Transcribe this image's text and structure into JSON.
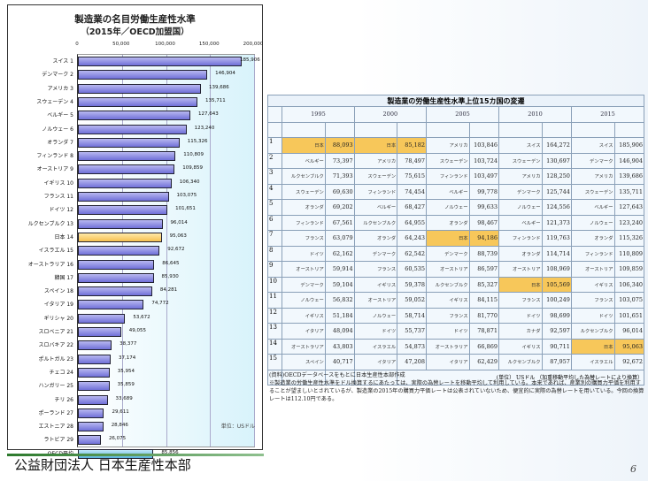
{
  "chart_data": {
    "type": "bar",
    "orientation": "horizontal",
    "title": "製造業の名目労働生産性水準",
    "subtitle": "（2015年／OECD加盟国）",
    "unit_label": "単位：USドル",
    "xlim": [
      0,
      200000
    ],
    "ticks": [
      "0",
      "50,000",
      "100,000",
      "150,000",
      "200,000"
    ],
    "tick_values": [
      0,
      50000,
      100000,
      150000,
      200000
    ],
    "highlight": "日本 14",
    "categories": [
      "スイス 1",
      "デンマーク 2",
      "アメリカ 3",
      "スウェーデン 4",
      "ベルギー 5",
      "ノルウェー 6",
      "オランダ 7",
      "フィンランド 8",
      "オーストリア 9",
      "イギリス 10",
      "フランス 11",
      "ドイツ 12",
      "ルクセンブルク 13",
      "日本 14",
      "イスラエル 15",
      "オーストラリア 16",
      "韓国 17",
      "スペイン 18",
      "イタリア 19",
      "ギリシャ 20",
      "スロベニア 21",
      "スロバキア 22",
      "ポルトガル 23",
      "チェコ 24",
      "ハンガリー 25",
      "チリ 26",
      "ポーランド 27",
      "エストニア 28",
      "ラトビア 29",
      "OECD平均"
    ],
    "values": [
      185906,
      146904,
      139686,
      135711,
      127643,
      123240,
      115326,
      110809,
      109859,
      106340,
      103075,
      101651,
      96014,
      95063,
      92672,
      86645,
      85930,
      84281,
      74772,
      53672,
      49055,
      38377,
      37174,
      35954,
      35859,
      33689,
      29611,
      28846,
      26075,
      85856
    ],
    "value_labels": [
      "185,906",
      "146,904",
      "139,686",
      "135,711",
      "127,643",
      "123,240",
      "115,326",
      "110,809",
      "109,859",
      "106,340",
      "103,075",
      "101,651",
      "96,014",
      "95,063",
      "92,672",
      "86,645",
      "85,930",
      "84,281",
      "74,772",
      "53,672",
      "49,055",
      "38,377",
      "37,174",
      "35,954",
      "35,859",
      "33,689",
      "29,611",
      "28,846",
      "26,075",
      "85,856"
    ]
  },
  "table": {
    "title": "製造業の労働生産性水準上位15カ国の変遷",
    "years": [
      "1995",
      "2000",
      "2005",
      "2010",
      "2015"
    ],
    "rows": [
      {
        "rank": "1",
        "cells": [
          [
            "日本",
            "88,093",
            1
          ],
          [
            "日本",
            "85,182",
            1
          ],
          [
            "アメリカ",
            "103,846",
            0
          ],
          [
            "スイス",
            "164,272",
            0
          ],
          [
            "スイス",
            "185,906",
            0
          ]
        ]
      },
      {
        "rank": "2",
        "cells": [
          [
            "ベルギー",
            "73,397",
            0
          ],
          [
            "アメリカ",
            "78,497",
            0
          ],
          [
            "スウェーデン",
            "103,724",
            0
          ],
          [
            "スウェーデン",
            "130,697",
            0
          ],
          [
            "デンマーク",
            "146,904",
            0
          ]
        ]
      },
      {
        "rank": "3",
        "cells": [
          [
            "ルクセンブルク",
            "71,393",
            0
          ],
          [
            "スウェーデン",
            "75,615",
            0
          ],
          [
            "フィンランド",
            "103,497",
            0
          ],
          [
            "アメリカ",
            "128,250",
            0
          ],
          [
            "アメリカ",
            "139,686",
            0
          ]
        ]
      },
      {
        "rank": "4",
        "cells": [
          [
            "スウェーデン",
            "69,630",
            0
          ],
          [
            "フィンランド",
            "74,454",
            0
          ],
          [
            "ベルギー",
            "99,778",
            0
          ],
          [
            "デンマーク",
            "125,744",
            0
          ],
          [
            "スウェーデン",
            "135,711",
            0
          ]
        ]
      },
      {
        "rank": "5",
        "cells": [
          [
            "オランダ",
            "69,202",
            0
          ],
          [
            "ベルギー",
            "68,427",
            0
          ],
          [
            "ノルウェー",
            "99,633",
            0
          ],
          [
            "ノルウェー",
            "124,556",
            0
          ],
          [
            "ベルギー",
            "127,643",
            0
          ]
        ]
      },
      {
        "rank": "6",
        "cells": [
          [
            "フィンランド",
            "67,561",
            0
          ],
          [
            "ルクセンブルク",
            "64,955",
            0
          ],
          [
            "オランダ",
            "98,467",
            0
          ],
          [
            "ベルギー",
            "121,373",
            0
          ],
          [
            "ノルウェー",
            "123,240",
            0
          ]
        ]
      },
      {
        "rank": "7",
        "cells": [
          [
            "フランス",
            "63,079",
            0
          ],
          [
            "オランダ",
            "64,243",
            0
          ],
          [
            "日本",
            "94,186",
            1
          ],
          [
            "フィンランド",
            "119,763",
            0
          ],
          [
            "オランダ",
            "115,326",
            0
          ]
        ]
      },
      {
        "rank": "8",
        "cells": [
          [
            "ドイツ",
            "62,162",
            0
          ],
          [
            "デンマーク",
            "62,542",
            0
          ],
          [
            "デンマーク",
            "88,739",
            0
          ],
          [
            "オランダ",
            "114,714",
            0
          ],
          [
            "フィンランド",
            "110,809",
            0
          ]
        ]
      },
      {
        "rank": "9",
        "cells": [
          [
            "オーストリア",
            "59,914",
            0
          ],
          [
            "フランス",
            "60,535",
            0
          ],
          [
            "オーストリア",
            "86,597",
            0
          ],
          [
            "オーストリア",
            "108,969",
            0
          ],
          [
            "オーストリア",
            "109,859",
            0
          ]
        ]
      },
      {
        "rank": "10",
        "cells": [
          [
            "デンマーク",
            "59,104",
            0
          ],
          [
            "イギリス",
            "59,378",
            0
          ],
          [
            "ルクセンブルク",
            "85,327",
            0
          ],
          [
            "日本",
            "105,569",
            1
          ],
          [
            "イギリス",
            "106,340",
            0
          ]
        ]
      },
      {
        "rank": "11",
        "cells": [
          [
            "ノルウェー",
            "56,832",
            0
          ],
          [
            "オーストリア",
            "59,052",
            0
          ],
          [
            "イギリス",
            "84,115",
            0
          ],
          [
            "フランス",
            "100,249",
            0
          ],
          [
            "フランス",
            "103,075",
            0
          ]
        ]
      },
      {
        "rank": "12",
        "cells": [
          [
            "イギリス",
            "51,184",
            0
          ],
          [
            "ノルウェー",
            "58,714",
            0
          ],
          [
            "フランス",
            "81,770",
            0
          ],
          [
            "ドイツ",
            "98,699",
            0
          ],
          [
            "ドイツ",
            "101,651",
            0
          ]
        ]
      },
      {
        "rank": "13",
        "cells": [
          [
            "イタリア",
            "48,094",
            0
          ],
          [
            "ドイツ",
            "55,737",
            0
          ],
          [
            "ドイツ",
            "78,871",
            0
          ],
          [
            "カナダ",
            "92,597",
            0
          ],
          [
            "ルクセンブルク",
            "96,014",
            0
          ]
        ]
      },
      {
        "rank": "14",
        "cells": [
          [
            "オーストラリア",
            "43,803",
            0
          ],
          [
            "イスラエル",
            "54,873",
            0
          ],
          [
            "オーストラリア",
            "66,869",
            0
          ],
          [
            "イギリス",
            "90,711",
            0
          ],
          [
            "日本",
            "95,063",
            1
          ]
        ]
      },
      {
        "rank": "15",
        "cells": [
          [
            "スペイン",
            "40,717",
            0
          ],
          [
            "イタリア",
            "47,208",
            0
          ],
          [
            "イタリア",
            "62,429",
            0
          ],
          [
            "ルクセンブルク",
            "87,957",
            0
          ],
          [
            "イスラエル",
            "92,672",
            0
          ]
        ]
      }
    ],
    "unit_note": "(単位） USドル （加重移動平均した為替レートにより換算）"
  },
  "notes": {
    "source": "(資料)OECDデータベースをもとに日本生産性本部作成",
    "remark": "※製造業の労働生産性水準をドル換算するにあたっては、実際の為替レートを移動平均して利用している。本来であれば、産業別の購買力平価を利用することが望ましいとされているが、製造業の2015年の購買力平価レートは公表されていないため、便宜的に実際の為替レートを用いている。今回の換算レートは112.10円である。"
  },
  "footer": {
    "org": "公益財団法人 日本生産性本部",
    "page": "6"
  },
  "colors": {
    "bar": "#7a7ae0",
    "japan": "#f5c050",
    "oecd_avg": "#5ab4dc",
    "highlight_cell": "#f7c75a"
  }
}
